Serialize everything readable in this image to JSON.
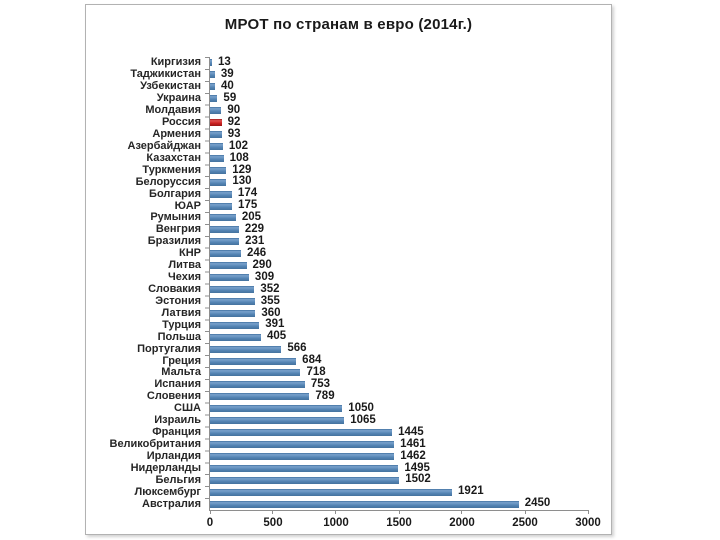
{
  "chart_data": {
    "type": "bar",
    "orientation": "horizontal",
    "title": "МРОТ по странам в евро (2014г.)",
    "categories": [
      "Киргизия",
      "Таджикистан",
      "Узбекистан",
      "Украина",
      "Молдавия",
      "Россия",
      "Армения",
      "Азербайджан",
      "Казахстан",
      "Туркмения",
      "Белоруссия",
      "Болгария",
      "ЮАР",
      "Румыния",
      "Венгрия",
      "Бразилия",
      "КНР",
      "Литва",
      "Чехия",
      "Словакия",
      "Эстония",
      "Латвия",
      "Турция",
      "Польша",
      "Португалия",
      "Греция",
      "Мальта",
      "Испания",
      "Словения",
      "США",
      "Израиль",
      "Франция",
      "Великобритания",
      "Ирландия",
      "Нидерланды",
      "Бельгия",
      "Люксембург",
      "Австралия"
    ],
    "values": [
      13,
      39,
      40,
      59,
      90,
      92,
      93,
      102,
      108,
      129,
      130,
      174,
      175,
      205,
      229,
      231,
      246,
      290,
      309,
      352,
      355,
      360,
      391,
      405,
      566,
      684,
      718,
      753,
      789,
      1050,
      1065,
      1445,
      1461,
      1462,
      1495,
      1502,
      1921,
      2450
    ],
    "highlight_category": "Россия",
    "xlim": [
      0,
      3000
    ],
    "x_ticks": [
      "0",
      "500",
      "1000",
      "1500",
      "2000",
      "2500",
      "3000"
    ],
    "bar_color": "#4f81bd",
    "highlight_color": "#cc2222",
    "axis_color": "#8e8e8e",
    "grid": "off",
    "legend": "none"
  }
}
